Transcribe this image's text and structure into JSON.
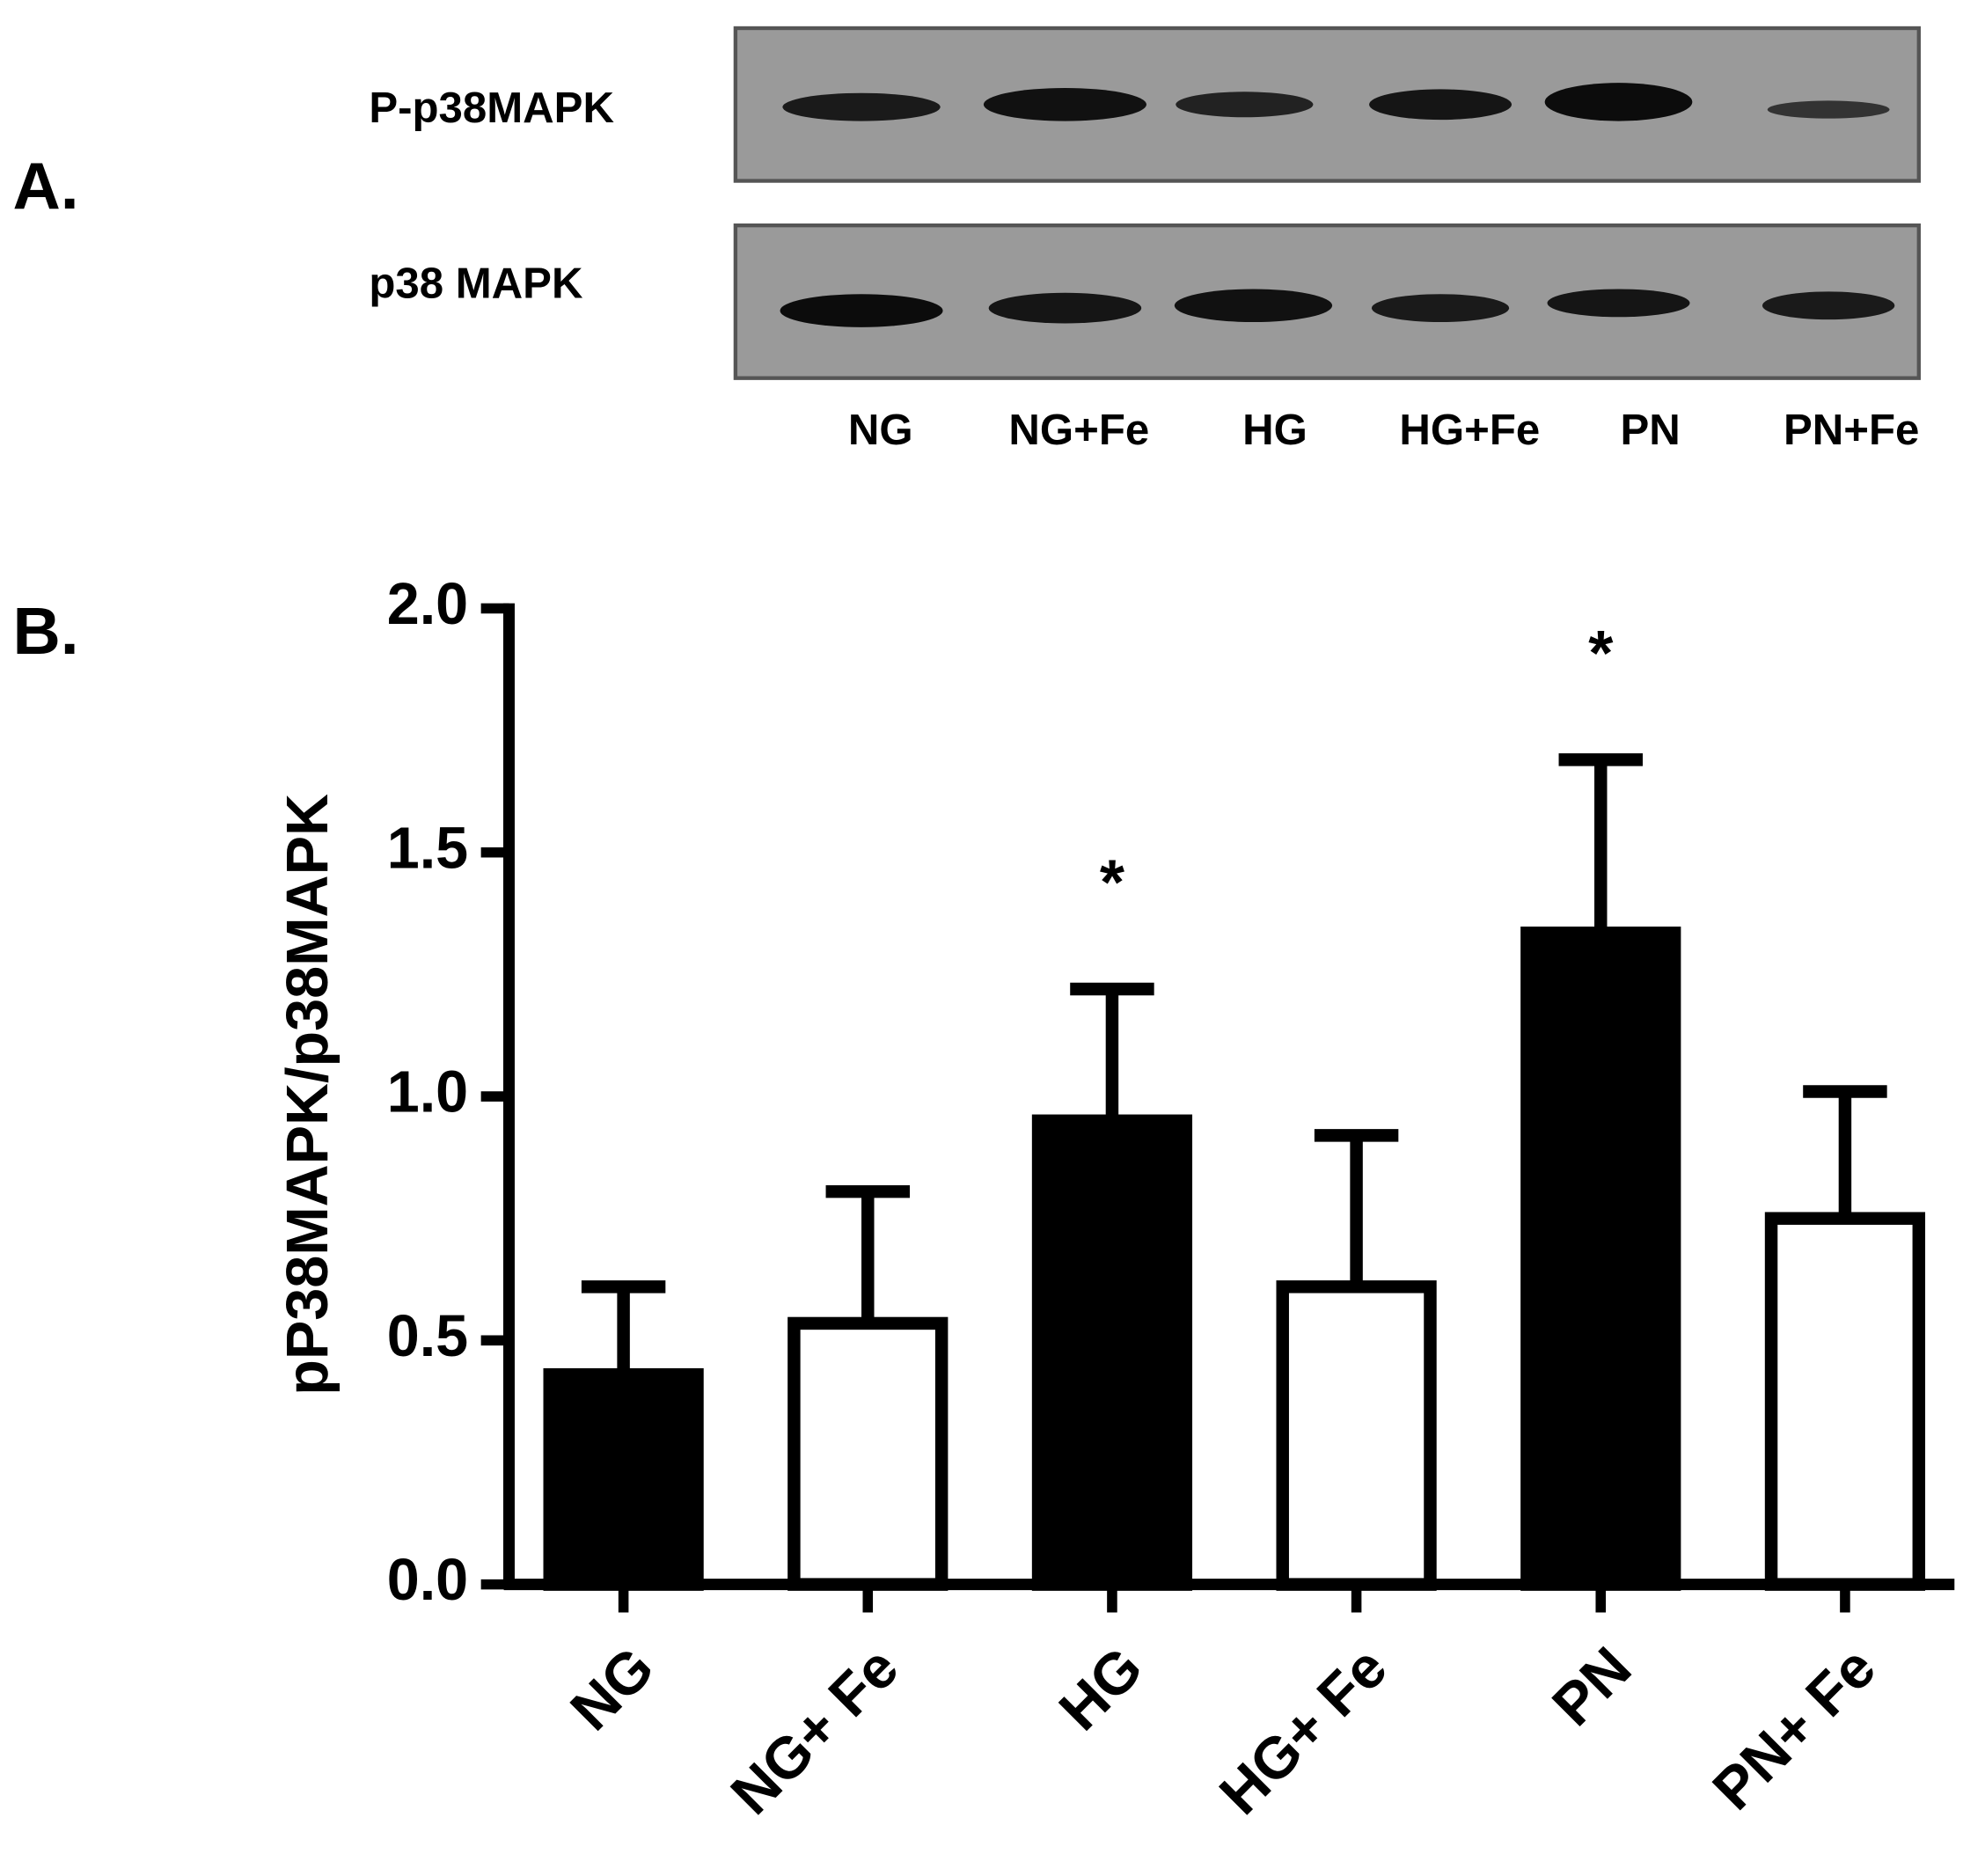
{
  "panel_a": {
    "label": "A.",
    "rows": [
      "P-p38MAPK",
      "p38 MAPK"
    ],
    "lanes": [
      "NG",
      "NG+Fe",
      "HG",
      "HG+Fe",
      "PN",
      "PN+Fe"
    ]
  },
  "panel_b": {
    "label": "B."
  },
  "chart_data": {
    "type": "bar",
    "y_label": "pP38MAPK/p38MAPK",
    "categories": [
      "NG",
      "NG+ Fe",
      "HG",
      "HG+ Fe",
      "PN",
      "PN+ Fe"
    ],
    "values": [
      0.43,
      0.535,
      0.95,
      0.61,
      1.335,
      0.75
    ],
    "errors": [
      0.18,
      0.27,
      0.27,
      0.31,
      0.355,
      0.26
    ],
    "colors": [
      "#000000",
      "#ffffff",
      "#000000",
      "#ffffff",
      "#000000",
      "#ffffff"
    ],
    "edgecolor": "#000000",
    "value_annotations": [
      null,
      null,
      "*",
      null,
      "*",
      null
    ],
    "ylim": [
      0,
      2.0
    ],
    "yticks": [
      {
        "value": 0,
        "label": "0.0"
      },
      {
        "value": 0.5,
        "label": "0.5"
      },
      {
        "value": 1.0,
        "label": "1.0"
      },
      {
        "value": 1.5,
        "label": "1.5"
      },
      {
        "value": 2.0,
        "label": "2.0"
      }
    ],
    "grid": false
  }
}
